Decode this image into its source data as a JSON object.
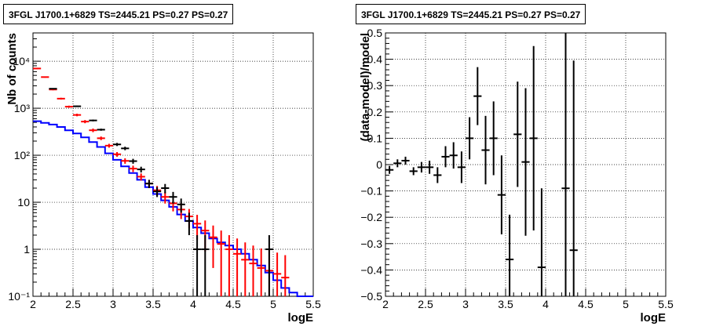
{
  "chart_data": [
    {
      "type": "line",
      "title": "3FGL J1700.1+6829 TS=2445.21 PS=0.27 PS=0.27",
      "xlabel": "logE",
      "ylabel": "Nb of counts",
      "xlim": [
        2,
        5.5
      ],
      "ylim": [
        0.1,
        40000
      ],
      "yscale": "log",
      "grid": true,
      "xticks": [
        "2",
        "2.5",
        "3",
        "3.5",
        "4",
        "4.5",
        "5",
        "5.5"
      ],
      "yticks": [
        "10⁻¹",
        "1",
        "10",
        "10²",
        "10³",
        "10⁴"
      ],
      "bin_width": 0.1,
      "series": [
        {
          "style": "step",
          "color": "#0000ff",
          "x": [
            2.0,
            2.1,
            2.2,
            2.3,
            2.4,
            2.5,
            2.6,
            2.7,
            2.8,
            2.9,
            3.0,
            3.1,
            3.2,
            3.3,
            3.4,
            3.5,
            3.6,
            3.7,
            3.8,
            3.9,
            4.0,
            4.1,
            4.2,
            4.3,
            4.4,
            4.5,
            4.6,
            4.7,
            4.8,
            4.9,
            5.0,
            5.1,
            5.2,
            5.3,
            5.4
          ],
          "values": [
            530,
            490,
            450,
            400,
            340,
            290,
            240,
            190,
            150,
            110,
            80,
            58,
            42,
            30,
            21,
            15,
            11,
            8,
            5.5,
            4,
            2.9,
            2.2,
            1.7,
            1.4,
            1.2,
            1.0,
            0.8,
            0.6,
            0.45,
            0.32,
            0.22,
            0.15,
            0.12,
            0.1,
            0.1
          ]
        },
        {
          "style": "errorbar",
          "color": "#ff0000",
          "x": [
            2.05,
            2.15,
            2.25,
            2.35,
            2.45,
            2.55,
            2.65,
            2.75,
            2.85,
            2.95,
            3.05,
            3.15,
            3.25,
            3.35,
            3.45,
            3.55,
            3.65,
            3.75,
            3.85,
            3.95,
            4.05,
            4.15,
            4.25,
            4.35,
            4.45,
            4.55,
            4.65,
            4.75,
            4.85,
            4.95,
            5.05,
            5.15
          ],
          "values": [
            7000,
            4600,
            2500,
            1600,
            1080,
            720,
            520,
            340,
            230,
            160,
            105,
            76,
            52,
            35,
            25,
            18,
            13,
            9.5,
            7,
            5,
            3.5,
            2.5,
            1.8,
            1.3,
            1.0,
            0.8,
            0.6,
            0.5,
            0.4,
            0.35,
            0.3,
            0.25
          ],
          "err": [
            200,
            140,
            90,
            70,
            55,
            45,
            40,
            30,
            20,
            15,
            12,
            10,
            8,
            6,
            5,
            4.2,
            3.6,
            3.1,
            2.6,
            2.2,
            1.9,
            1.6,
            1.4,
            1.2,
            1.0,
            0.9,
            0.8,
            0.7,
            0.64,
            0.6,
            0.55,
            0.5
          ]
        },
        {
          "style": "errorbar",
          "color": "#000000",
          "x": [
            2.25,
            2.55,
            2.75,
            2.85,
            3.05,
            3.15,
            3.25,
            3.35,
            3.45,
            3.55,
            3.65,
            3.75,
            3.85,
            3.95,
            4.05,
            4.15,
            4.95
          ],
          "values": [
            2600,
            1100,
            550,
            350,
            170,
            140,
            75,
            50,
            25,
            17,
            20,
            13,
            9,
            4,
            1,
            1,
            1
          ],
          "err": [
            50,
            33,
            23,
            18,
            13,
            12,
            9,
            7,
            5,
            4.1,
            4.5,
            3.6,
            3,
            2,
            1,
            1,
            1
          ]
        }
      ]
    },
    {
      "type": "scatter",
      "title": "3FGL J1700.1+6829 TS=2445.21 PS=0.27 PS=0.27",
      "xlabel": "logE",
      "ylabel": "(data-model)/model",
      "xlim": [
        2,
        5.5
      ],
      "ylim": [
        -0.5,
        0.5
      ],
      "grid": true,
      "xticks": [
        "2",
        "2.5",
        "3",
        "3.5",
        "4",
        "4.5",
        "5",
        "5.5"
      ],
      "yticks": [
        "−0.5",
        "−0.4",
        "−0.3",
        "−0.2",
        "−0.1",
        "0",
        "0.1",
        "0.2",
        "0.3",
        "0.4",
        "0.5"
      ],
      "series": [
        {
          "style": "errorbar",
          "color": "#000000",
          "x": [
            2.05,
            2.15,
            2.25,
            2.35,
            2.45,
            2.55,
            2.65,
            2.75,
            2.85,
            2.95,
            3.05,
            3.15,
            3.25,
            3.35,
            3.45,
            3.55,
            3.65,
            3.75,
            3.85,
            3.95,
            4.25,
            4.35
          ],
          "values": [
            -0.02,
            0.005,
            0.015,
            -0.025,
            -0.01,
            -0.01,
            -0.04,
            0.03,
            0.035,
            -0.01,
            0.1,
            0.26,
            0.055,
            0.1,
            -0.115,
            -0.36,
            0.115,
            0.01,
            0.1,
            -0.39,
            -0.09,
            -0.325
          ],
          "err": [
            0.015,
            0.015,
            0.015,
            0.015,
            0.02,
            0.025,
            0.03,
            0.04,
            0.05,
            0.06,
            0.08,
            0.11,
            0.13,
            0.14,
            0.15,
            0.17,
            0.2,
            0.28,
            0.35,
            0.3,
            0.6,
            0.72
          ]
        }
      ]
    }
  ]
}
